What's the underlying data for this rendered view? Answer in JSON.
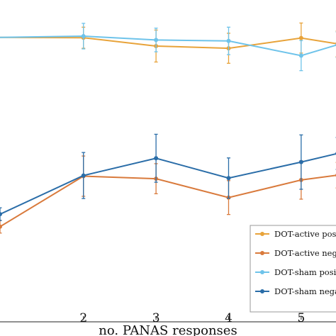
{
  "chart_data": {
    "type": "line",
    "xlabel": "no. PANAS responses",
    "ylabel": "",
    "x_ticks": [
      2,
      3,
      4,
      5
    ],
    "xlim": [
      0.85,
      5.48
    ],
    "ylim": [
      0,
      1
    ],
    "grid": false,
    "legend_position": "bottom-right",
    "series": [
      {
        "name": "DOT-active positive",
        "color": "#e8a33a",
        "x": [
          0.8,
          2,
          3,
          4,
          5,
          5.5
        ],
        "y": [
          0.883,
          0.882,
          0.856,
          0.849,
          0.881,
          0.863
        ],
        "err": [
          0.02,
          0.033,
          0.05,
          0.047,
          0.047,
          0.04
        ]
      },
      {
        "name": "DOT-active negative",
        "color": "#d97a3c",
        "x": [
          0.85,
          2,
          3,
          4,
          5,
          5.5
        ],
        "y": [
          0.291,
          0.449,
          0.441,
          0.382,
          0.437,
          0.452
        ],
        "err": [
          0.02,
          0.063,
          0.047,
          0.053,
          0.06,
          0.04
        ]
      },
      {
        "name": "DOT-sham positive",
        "color": "#6ec3ea",
        "x": [
          0.8,
          2,
          3,
          4,
          5,
          5.5
        ],
        "y": [
          0.883,
          0.887,
          0.875,
          0.872,
          0.826,
          0.86
        ],
        "err": [
          0.02,
          0.04,
          0.037,
          0.043,
          0.047,
          0.04
        ]
      },
      {
        "name": "DOT-sham negative",
        "color": "#2a6da8",
        "x": [
          0.85,
          2,
          3,
          4,
          5,
          5.5
        ],
        "y": [
          0.33,
          0.451,
          0.505,
          0.443,
          0.493,
          0.52
        ],
        "err": [
          0.02,
          0.072,
          0.075,
          0.063,
          0.085,
          0.05
        ]
      }
    ]
  }
}
